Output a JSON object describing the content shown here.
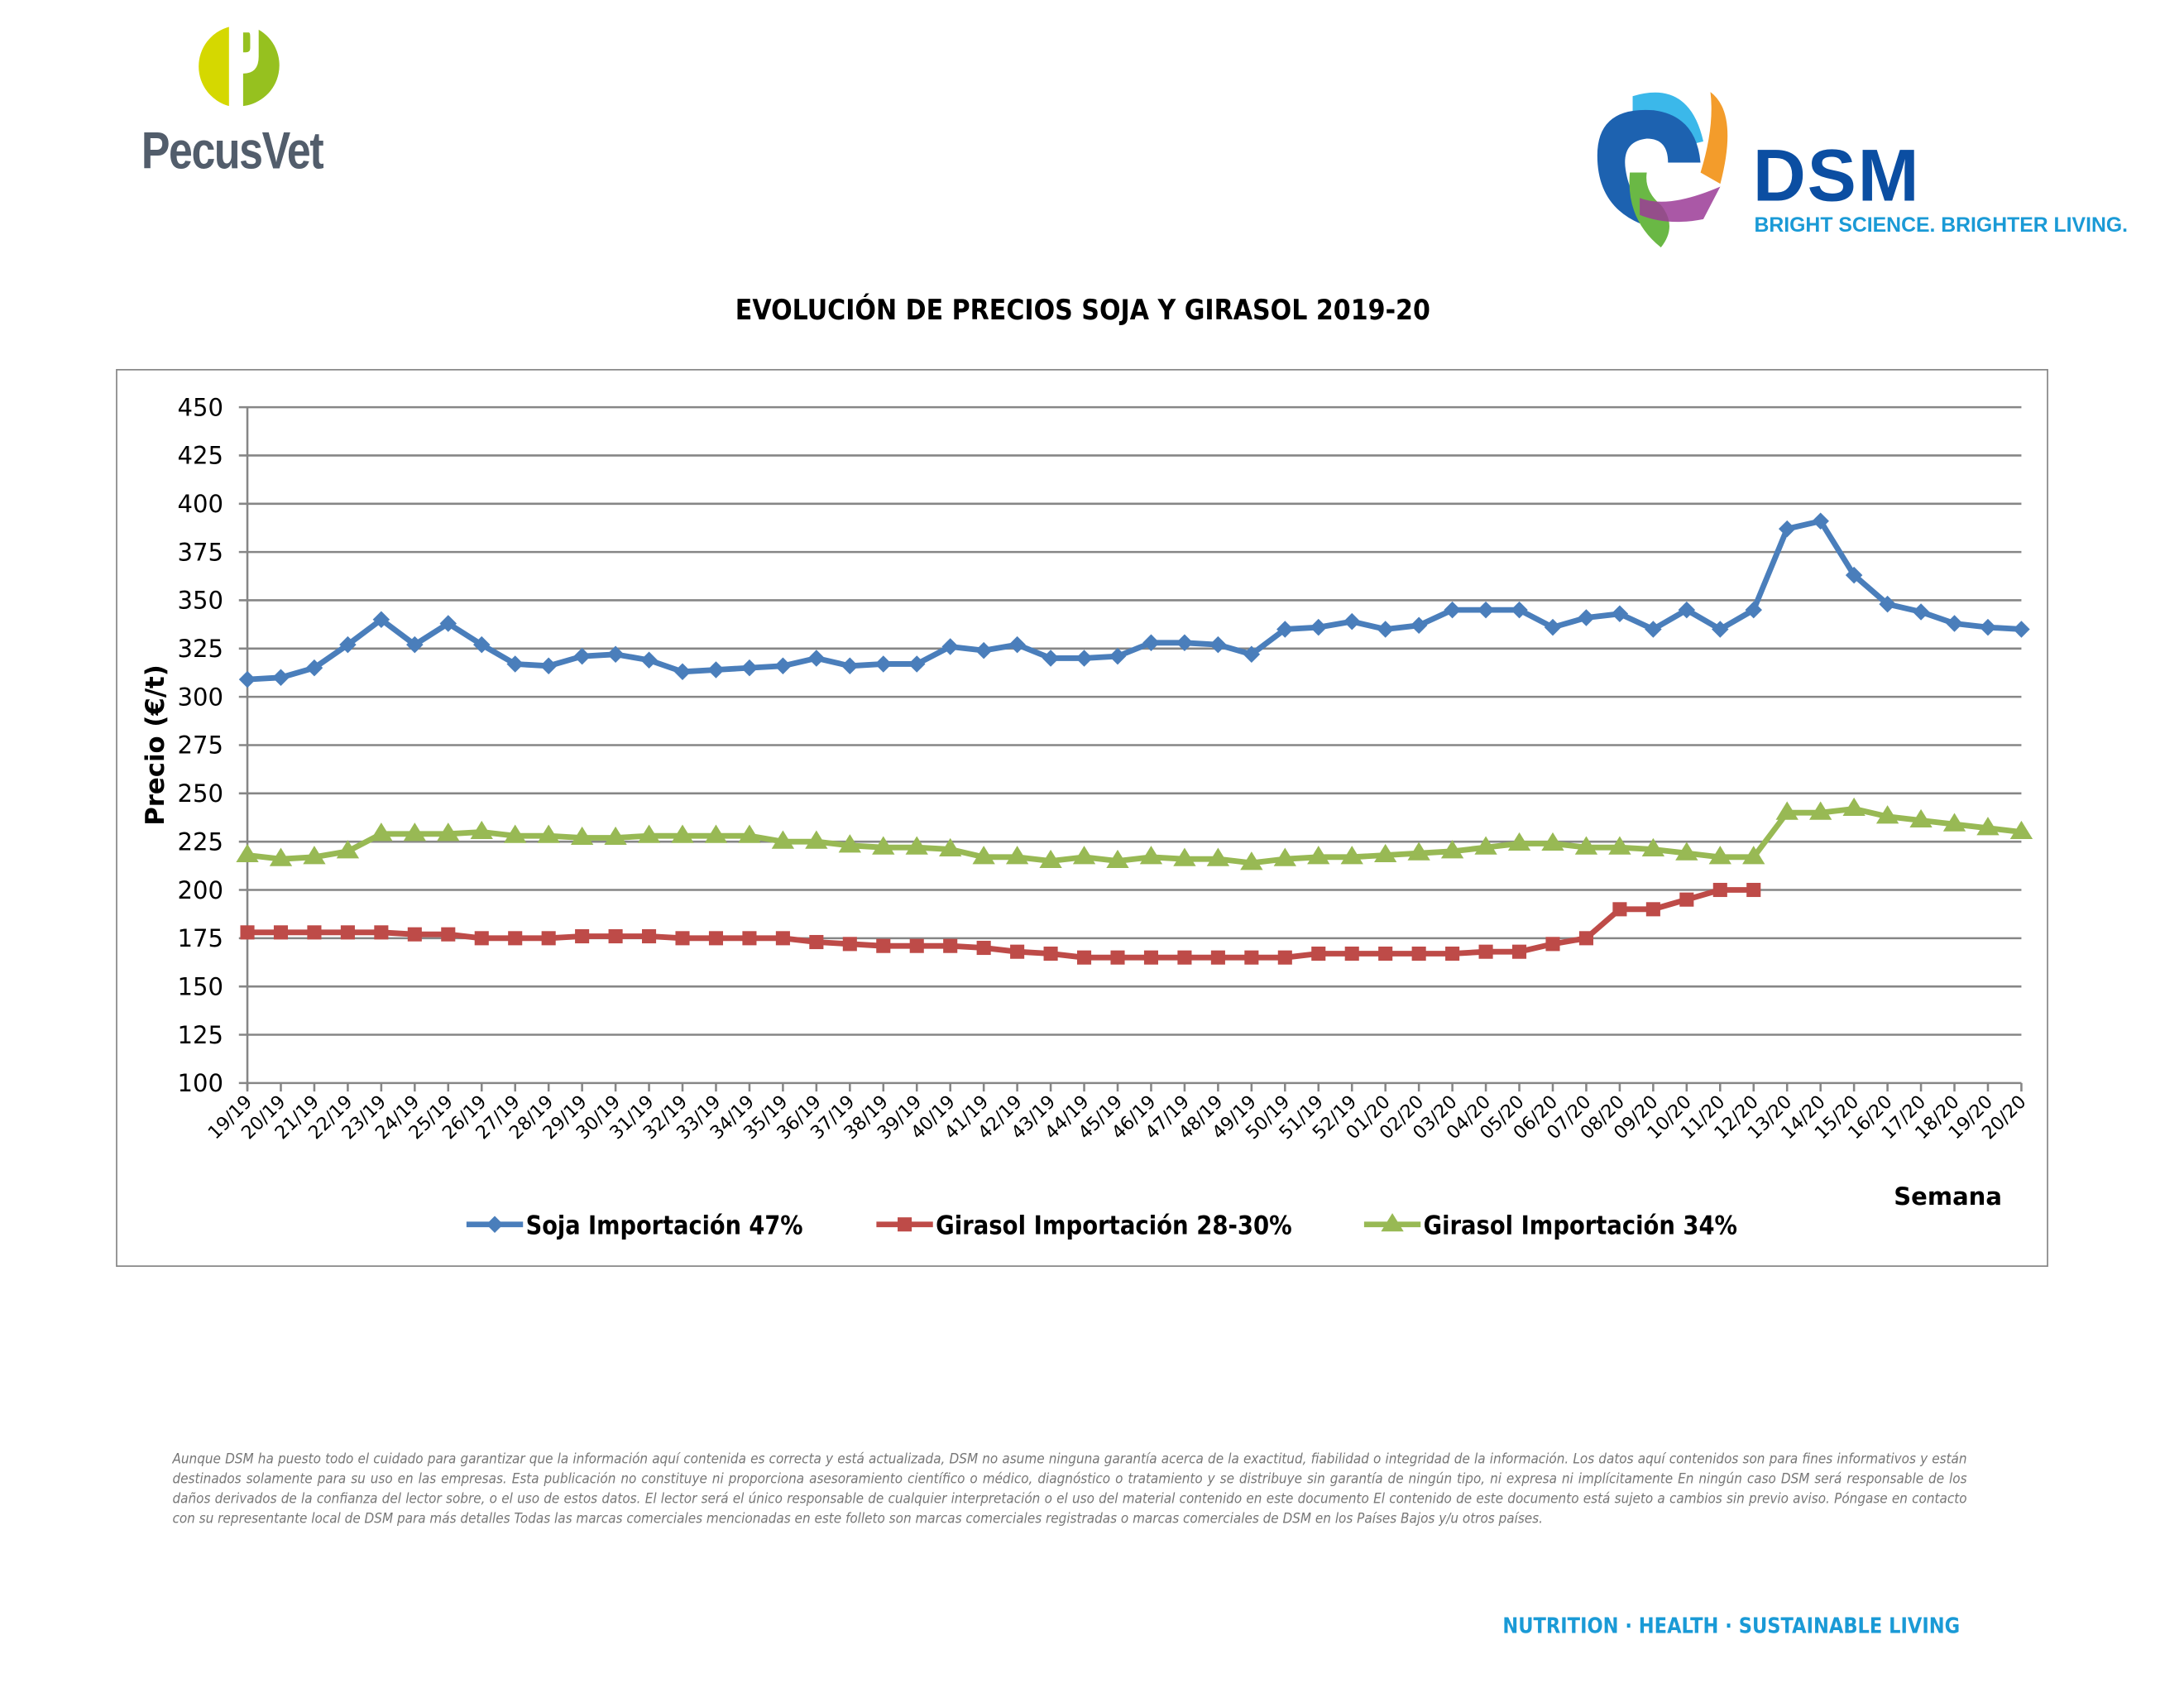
{
  "header": {
    "pecusvet_logo_text": "PecusVet",
    "dsm_logo_text": "DSM",
    "dsm_tagline": "BRIGHT SCIENCE. BRIGHTER LIVING."
  },
  "chart_data": {
    "type": "line",
    "title": "EVOLUCIÓN DE PRECIOS SOJA Y GIRASOL 2019-20",
    "xlabel": "Semana",
    "ylabel": "Precio (€/t)",
    "ylim": [
      100,
      450
    ],
    "yticks": [
      "100",
      "125",
      "150",
      "175",
      "200",
      "225",
      "250",
      "275",
      "300",
      "325",
      "350",
      "375",
      "400",
      "425",
      "450"
    ],
    "grid": true,
    "legend_position": "bottom",
    "categories": [
      "19/19",
      "20/19",
      "21/19",
      "22/19",
      "23/19",
      "24/19",
      "25/19",
      "26/19",
      "27/19",
      "28/19",
      "29/19",
      "30/19",
      "31/19",
      "32/19",
      "33/19",
      "34/19",
      "35/19",
      "36/19",
      "37/19",
      "38/19",
      "39/19",
      "40/19",
      "41/19",
      "42/19",
      "43/19",
      "44/19",
      "45/19",
      "46/19",
      "47/19",
      "48/19",
      "49/19",
      "50/19",
      "51/19",
      "52/19",
      "01/20",
      "02/20",
      "03/20",
      "04/20",
      "05/20",
      "06/20",
      "07/20",
      "08/20",
      "09/20",
      "10/20",
      "11/20",
      "12/20",
      "13/20",
      "14/20",
      "15/20",
      "16/20",
      "17/20",
      "18/20",
      "19/20",
      "20/20"
    ],
    "series": [
      {
        "name": "Soja Importación 47%",
        "color": "#4a7ebb",
        "marker": "diamond",
        "values": [
          309,
          310,
          315,
          327,
          340,
          327,
          338,
          327,
          317,
          316,
          321,
          322,
          319,
          313,
          314,
          315,
          316,
          320,
          316,
          317,
          317,
          326,
          324,
          327,
          320,
          320,
          321,
          328,
          328,
          327,
          322,
          335,
          336,
          339,
          335,
          337,
          345,
          345,
          345,
          336,
          341,
          343,
          335,
          345,
          335,
          345,
          387,
          391,
          363,
          348,
          344,
          338,
          336,
          335
        ]
      },
      {
        "name": "Girasol Importación 28-30%",
        "color": "#be4b48",
        "marker": "square",
        "values": [
          178,
          178,
          178,
          178,
          178,
          177,
          177,
          175,
          175,
          175,
          176,
          176,
          176,
          175,
          175,
          175,
          175,
          173,
          172,
          171,
          171,
          171,
          170,
          168,
          167,
          165,
          165,
          165,
          165,
          165,
          165,
          165,
          167,
          167,
          167,
          167,
          167,
          168,
          168,
          172,
          175,
          190,
          190,
          195,
          200,
          200,
          null,
          null,
          null,
          null,
          null,
          null,
          null,
          null
        ]
      },
      {
        "name": "Girasol Importación 34%",
        "color": "#98b954",
        "marker": "triangle",
        "values": [
          218,
          216,
          217,
          220,
          229,
          229,
          229,
          230,
          228,
          228,
          227,
          227,
          228,
          228,
          228,
          228,
          225,
          225,
          223,
          222,
          222,
          221,
          217,
          217,
          215,
          217,
          215,
          217,
          216,
          216,
          214,
          216,
          217,
          217,
          218,
          219,
          220,
          222,
          224,
          224,
          222,
          222,
          221,
          219,
          217,
          217,
          240,
          240,
          242,
          238,
          236,
          234,
          232,
          230
        ]
      }
    ]
  },
  "disclaimer": "Aunque DSM ha puesto todo el cuidado para garantizar que la información aquí contenida es correcta y está actualizada, DSM no asume ninguna garantía acerca de la exactitud, fiabilidad o integridad de la información. Los datos aquí contenidos son para fines informativos y están destinados solamente para su uso en las empresas. Esta publicación no constituye ni proporciona asesoramiento científico o médico, diagnóstico o tratamiento y se distribuye sin garantía de ningún tipo, ni expresa ni implícitamente En ningún caso DSM será responsable de los daños derivados de la confianza del lector sobre, o el uso de estos datos. El lector será el único responsable de cualquier interpretación o el uso del material contenido en este documento El contenido de este documento está sujeto a cambios sin previo aviso. Póngase en contacto con su representante local de DSM para más detalles Todas las marcas comerciales mencionadas en este folleto son marcas comerciales registradas o marcas comerciales de DSM en los Países Bajos y/u otros países.",
  "footer": {
    "tagline": "NUTRITION · HEALTH · SUSTAINABLE LIVING"
  }
}
